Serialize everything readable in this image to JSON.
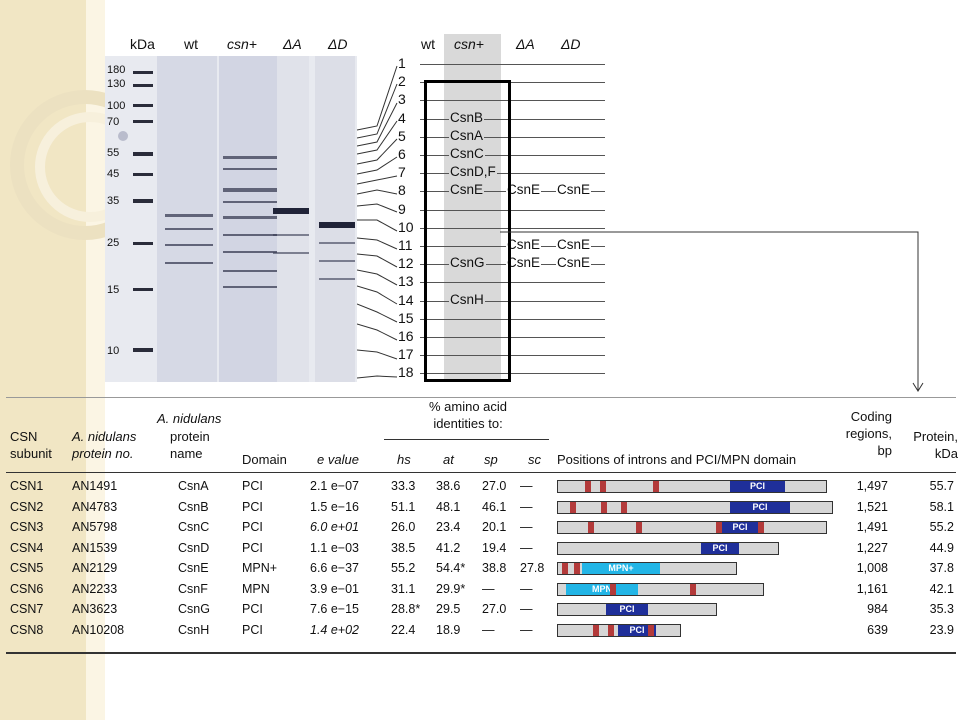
{
  "gel": {
    "kda_label": "kDa",
    "lanes": [
      {
        "label": "wt",
        "italic": false
      },
      {
        "label": "csn+",
        "italic": true
      },
      {
        "label": "ΔA",
        "italic": true
      },
      {
        "label": "ΔD",
        "italic": true
      }
    ],
    "markers": [
      "180",
      "130",
      "100",
      "70",
      "55",
      "45",
      "35",
      "25",
      "15",
      "10"
    ]
  },
  "band_map": {
    "lanes": [
      {
        "label": "wt",
        "italic": false
      },
      {
        "label": "csn+",
        "italic": true
      },
      {
        "label": "ΔA",
        "italic": true
      },
      {
        "label": "ΔD",
        "italic": true
      }
    ],
    "bands": [
      {
        "num": "1",
        "names": []
      },
      {
        "num": "2",
        "names": []
      },
      {
        "num": "3",
        "names": []
      },
      {
        "num": "4",
        "names": [
          "CsnB"
        ]
      },
      {
        "num": "5",
        "names": [
          "CsnA"
        ]
      },
      {
        "num": "6",
        "names": [
          "CsnC"
        ]
      },
      {
        "num": "7",
        "names": [
          "CsnD,F"
        ]
      },
      {
        "num": "8",
        "names": [
          "CsnE",
          "CsnE",
          "CsnE"
        ]
      },
      {
        "num": "9",
        "names": []
      },
      {
        "num": "10",
        "names": []
      },
      {
        "num": "11",
        "names": [
          "",
          "CsnE",
          "CsnE"
        ]
      },
      {
        "num": "12",
        "names": [
          "CsnG",
          "CsnE",
          "CsnE"
        ]
      },
      {
        "num": "13",
        "names": []
      },
      {
        "num": "14",
        "names": [
          "CsnH"
        ]
      },
      {
        "num": "15",
        "names": []
      },
      {
        "num": "16",
        "names": []
      },
      {
        "num": "17",
        "names": []
      },
      {
        "num": "18",
        "names": []
      }
    ]
  },
  "table": {
    "headers": {
      "csn_subunit": "CSN subunit",
      "protein_no": "A. nidulans protein no.",
      "protein_name_a": "A. nidulans",
      "protein_name_b": "protein name",
      "domain": "Domain",
      "evalue": "e value",
      "identity_group": "% amino acid identities to:",
      "hs": "hs",
      "at": "at",
      "sp": "sp",
      "sc": "sc",
      "positions": "Positions of introns and PCI/MPN domain",
      "coding": "Coding regions, bp",
      "protein_kda": "Protein, kDa"
    },
    "rows": [
      {
        "subunit": "CSN1",
        "no": "AN1491",
        "name": "CsnA",
        "domain": "PCI",
        "evalue": "2.1 e−07",
        "evalue_italic": false,
        "hs": "33.3",
        "at": "38.6",
        "sp": "27.0",
        "sc": "—",
        "bp": "1,497",
        "kda": "55.7",
        "dom_label": "PCI",
        "dom_type": "PCI"
      },
      {
        "subunit": "CSN2",
        "no": "AN4783",
        "name": "CsnB",
        "domain": "PCI",
        "evalue": "1.5 e−16",
        "evalue_italic": false,
        "hs": "51.1",
        "at": "48.1",
        "sp": "46.1",
        "sc": "—",
        "bp": "1,521",
        "kda": "58.1",
        "dom_label": "PCI",
        "dom_type": "PCI"
      },
      {
        "subunit": "CSN3",
        "no": "AN5798",
        "name": "CsnC",
        "domain": "PCI",
        "evalue": "6.0 e+01",
        "evalue_italic": true,
        "hs": "26.0",
        "at": "23.4",
        "sp": "20.1",
        "sc": "—",
        "bp": "1,491",
        "kda": "55.2",
        "dom_label": "PCI",
        "dom_type": "PCI"
      },
      {
        "subunit": "CSN4",
        "no": "AN1539",
        "name": "CsnD",
        "domain": "PCI",
        "evalue": "1.1 e−03",
        "evalue_italic": false,
        "hs": "38.5",
        "at": "41.2",
        "sp": "19.4",
        "sc": "—",
        "bp": "1,227",
        "kda": "44.9",
        "dom_label": "PCI",
        "dom_type": "PCI"
      },
      {
        "subunit": "CSN5",
        "no": "AN2129",
        "name": "CsnE",
        "domain": "MPN+",
        "evalue": "6.6 e−37",
        "evalue_italic": false,
        "hs": "55.2",
        "at": "54.4*",
        "sp": "38.8",
        "sc": "27.8",
        "bp": "1,008",
        "kda": "37.8",
        "dom_label": "MPN+",
        "dom_type": "MPN"
      },
      {
        "subunit": "CSN6",
        "no": "AN2233",
        "name": "CsnF",
        "domain": "MPN",
        "evalue": "3.9 e−01",
        "evalue_italic": false,
        "hs": "31.1",
        "at": "29.9*",
        "sp": "—",
        "sc": "—",
        "bp": "1,161",
        "kda": "42.1",
        "dom_label": "MPN",
        "dom_type": "MPN"
      },
      {
        "subunit": "CSN7",
        "no": "AN3623",
        "name": "CsnG",
        "domain": "PCI",
        "evalue": "7.6 e−15",
        "evalue_italic": false,
        "hs": "28.8*",
        "at": "29.5",
        "sp": "27.0",
        "sc": "—",
        "bp": "984",
        "kda": "35.3",
        "dom_label": "PCI",
        "dom_type": "PCI"
      },
      {
        "subunit": "CSN8",
        "no": "AN10208",
        "name": "CsnH",
        "domain": "PCI",
        "evalue": "1.4 e+02",
        "evalue_italic": true,
        "hs": "22.4",
        "at": "18.9",
        "sp": "—",
        "sc": "—",
        "bp": "639",
        "kda": "23.9",
        "dom_label": "PCI",
        "dom_type": "PCI"
      }
    ]
  },
  "colors": {
    "intron": "#b33a3a",
    "pci": "#1f2f9a",
    "mpn": "#22b5e6",
    "bar": "#d6d6d6",
    "highlight": "#d9d9d9",
    "sidebar": "#f1e6c4"
  }
}
